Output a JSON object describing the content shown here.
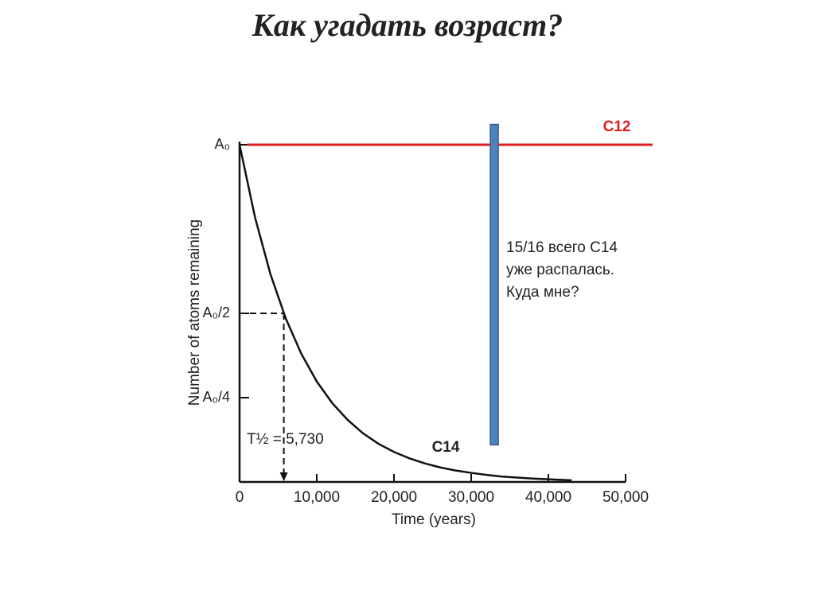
{
  "chart_data": {
    "type": "line",
    "title": "Как угадать возраст?",
    "x_label": "Time (years)",
    "y_label": "Number of atoms remaining",
    "xlim": [
      0,
      50000
    ],
    "ylim": [
      0,
      1
    ],
    "xticks": [
      0,
      {
        "value": 10000,
        "label": "10,000"
      },
      {
        "value": 20000,
        "label": "20,000"
      },
      {
        "value": 30000,
        "label": "30,000"
      },
      {
        "value": 40000,
        "label": "40,000"
      },
      {
        "value": 50000,
        "label": "50,000"
      }
    ],
    "yticks": [
      {
        "value": 1,
        "label": "A₀"
      },
      {
        "value": 0.5,
        "label": "A₀/2"
      },
      {
        "value": 0.25,
        "label": "A₀/4"
      }
    ],
    "series": [
      {
        "name": "C12",
        "color": "#e02020",
        "x": [
          1000,
          53500
        ],
        "values": [
          1,
          1
        ]
      },
      {
        "name": "C14",
        "color": "#111111",
        "x": [
          0,
          2000,
          4000,
          6000,
          8000,
          10000,
          12000,
          14000,
          16000,
          18000,
          20000,
          22000,
          24000,
          26000,
          28000,
          30000,
          32000,
          34000,
          36000,
          38000,
          40000,
          42000,
          43000
        ],
        "values": [
          1,
          0.785,
          0.616,
          0.484,
          0.38,
          0.298,
          0.234,
          0.184,
          0.144,
          0.113,
          0.089,
          0.07,
          0.055,
          0.043,
          0.034,
          0.027,
          0.021,
          0.016,
          0.013,
          0.01,
          0.008,
          0.006,
          0.005
        ]
      }
    ],
    "half_life": {
      "x": 5730,
      "y": 0.5,
      "label": "T½ = 5,730"
    },
    "marker": {
      "x": 33000,
      "ylim": [
        0.11,
        1.06
      ],
      "color": "#4f81bd"
    },
    "annotation": [
      "15/16 всего С14",
      "уже распалась.",
      "Куда мне?"
    ]
  }
}
